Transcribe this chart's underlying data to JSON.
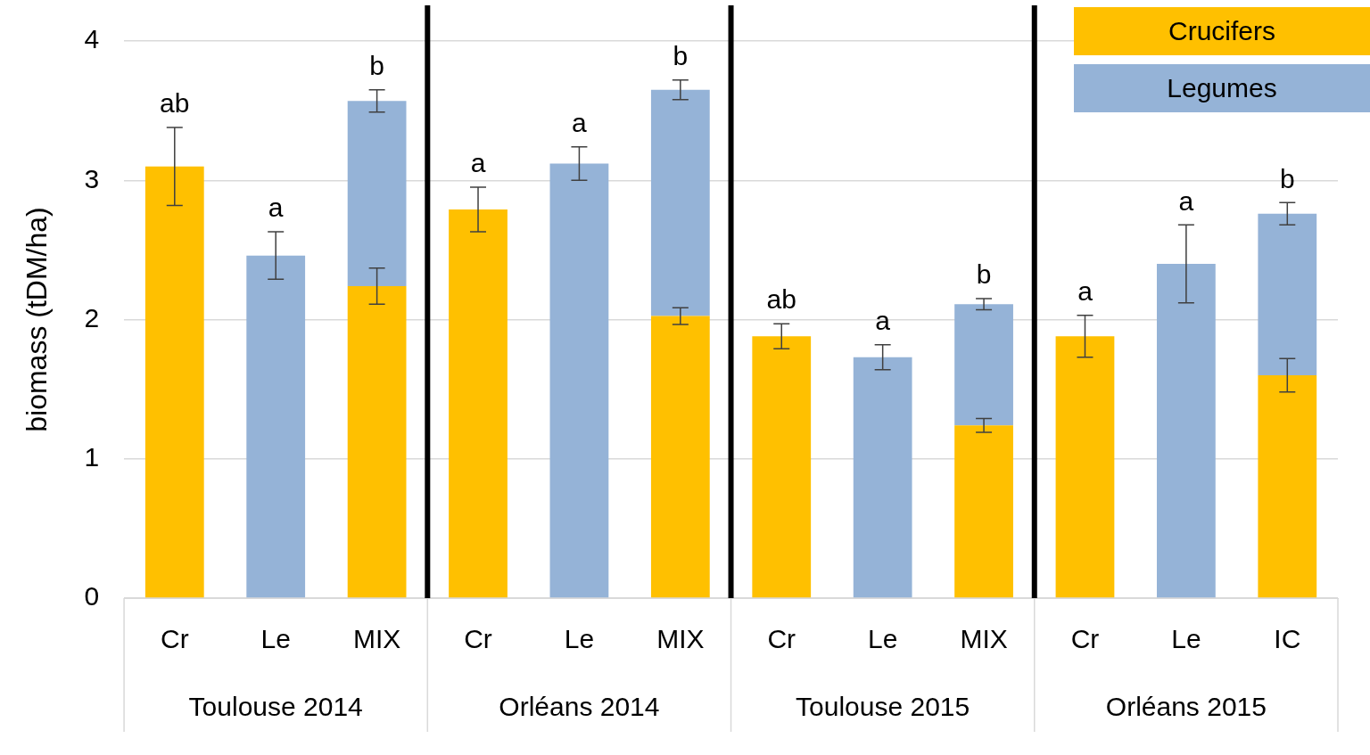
{
  "chart_data": {
    "type": "bar",
    "stacked": true,
    "ylabel": "biomass (tDM/ha)",
    "categories": [
      "Cr",
      "Le",
      "MIX",
      "Cr",
      "Le",
      "MIX",
      "Cr",
      "Le",
      "MIX",
      "Cr",
      "Le",
      "IC"
    ],
    "series": [
      {
        "name": "Crucifers",
        "color": "#ffc000",
        "values": [
          3.1,
          null,
          2.24,
          2.79,
          null,
          2.025,
          1.88,
          null,
          1.24,
          1.88,
          null,
          1.6
        ],
        "errors": [
          0.28,
          null,
          0.13,
          0.16,
          null,
          0.06,
          0.09,
          null,
          0.05,
          0.15,
          null,
          0.12
        ]
      },
      {
        "name": "Legumes",
        "color": "#95b3d7",
        "values": [
          null,
          2.46,
          1.33,
          null,
          3.12,
          1.625,
          null,
          1.73,
          0.87,
          null,
          2.4,
          1.16
        ],
        "errors": [
          null,
          0.17,
          0.08,
          null,
          0.12,
          0.07,
          null,
          0.09,
          0.04,
          null,
          0.28,
          0.08
        ]
      }
    ],
    "ylim": [
      0,
      4
    ],
    "yticks": [
      0,
      1,
      2,
      3,
      4
    ],
    "grid": "y",
    "legend": "top right",
    "annotations": [
      "ab",
      "a",
      "b",
      "a",
      "a",
      "b",
      "ab",
      "a",
      "b",
      "a",
      "a",
      "b",
      "Toulouse 2014",
      "Orléans 2014",
      "Toulouse 2015",
      "Orléans 2015"
    ]
  }
}
